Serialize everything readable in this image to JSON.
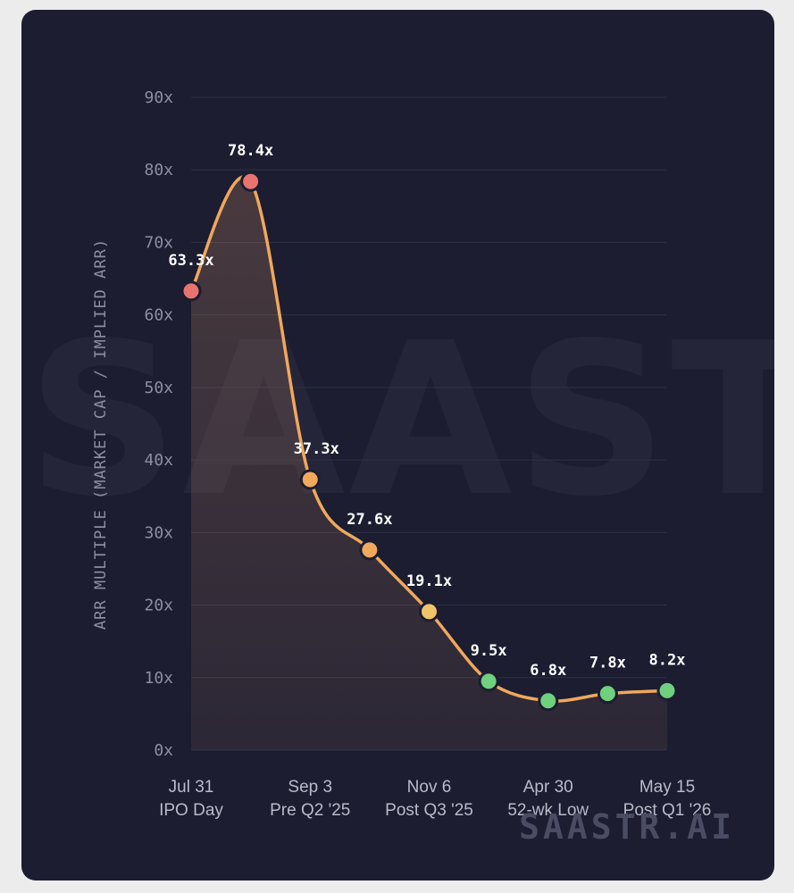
{
  "chart_data": {
    "type": "line",
    "title": "",
    "xlabel": "",
    "ylabel": "ARR MULTIPLE  (MARKET CAP / IMPLIED ARR)",
    "ylim": [
      0,
      90
    ],
    "yticks": [
      "0x",
      "10x",
      "20x",
      "30x",
      "40x",
      "50x",
      "60x",
      "70x",
      "80x",
      "90x"
    ],
    "grid": true,
    "x_tick_labels": [
      {
        "index": 0,
        "lines": [
          "Jul 31",
          "IPO Day"
        ]
      },
      {
        "index": 2,
        "lines": [
          "Sep 3",
          "Pre Q2 '25"
        ]
      },
      {
        "index": 4,
        "lines": [
          "Nov 6",
          "Post Q3 '25"
        ]
      },
      {
        "index": 6,
        "lines": [
          "Apr 30",
          "52-wk Low"
        ]
      },
      {
        "index": 8,
        "lines": [
          "May 15",
          "Post Q1 '26"
        ]
      }
    ],
    "series": [
      {
        "values": [
          63.3,
          78.4,
          37.3,
          27.6,
          19.1,
          9.5,
          6.8,
          7.8,
          8.2
        ],
        "labels": [
          "63.3x",
          "78.4x",
          "37.3x",
          "27.6x",
          "19.1x",
          "9.5x",
          "6.8x",
          "7.8x",
          "8.2x"
        ],
        "colors": [
          "#e8736f",
          "#e8736f",
          "#f0a85c",
          "#f0a85c",
          "#f2c46a",
          "#6fd07e",
          "#6fd07e",
          "#6fd07e",
          "#6fd07e"
        ]
      }
    ],
    "line_color": "#f0a85c"
  },
  "watermark": "SAASTR.AI",
  "brand": "SAASTR.AI"
}
